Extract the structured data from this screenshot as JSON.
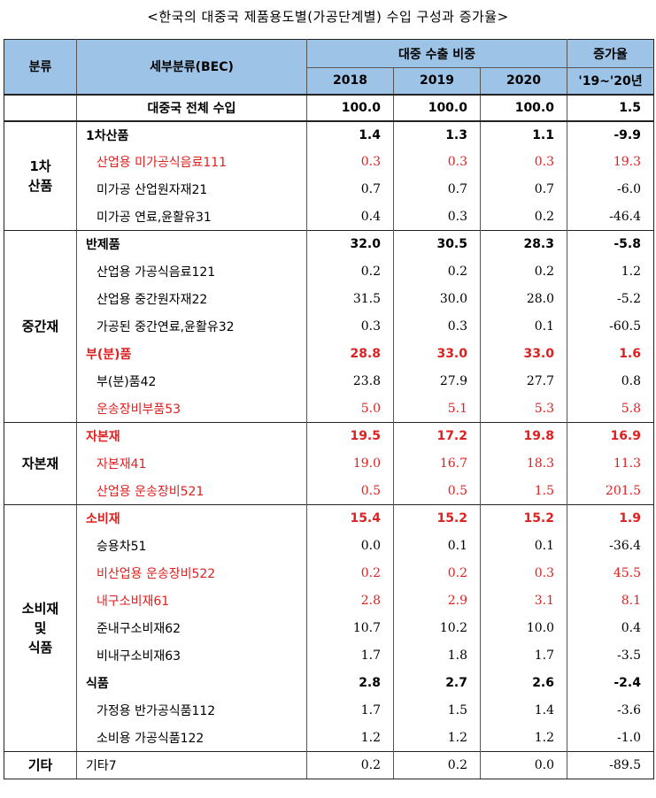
{
  "title": "<한국의 대중국 제품용도별(가공단계별) 수입 구성과 증가율>",
  "header": {
    "col_category": "분류",
    "col_detail": "세부분류(BEC)",
    "col_share": "대중 수출 비중",
    "col_growth": "증가율",
    "years": [
      "2018",
      "2019",
      "2020"
    ],
    "growth_period": "'19~'20년"
  },
  "total": {
    "label": "대중국 전체 수입",
    "v2018": "100.0",
    "v2019": "100.0",
    "v2020": "100.0",
    "growth": "1.5"
  },
  "groups": [
    {
      "category": "1차\n산품",
      "rows": [
        {
          "label": "1차산품",
          "v2018": "1.4",
          "v2019": "1.3",
          "v2020": "1.1",
          "growth": "-9.9",
          "style": "bold"
        },
        {
          "label": "산업용 미가공식음료111",
          "v2018": "0.3",
          "v2019": "0.3",
          "v2020": "0.3",
          "growth": "19.3",
          "style": "red"
        },
        {
          "label": "미가공 산업원자재21",
          "v2018": "0.7",
          "v2019": "0.7",
          "v2020": "0.7",
          "growth": "-6.0",
          "style": ""
        },
        {
          "label": "미가공 연료,윤활유31",
          "v2018": "0.4",
          "v2019": "0.3",
          "v2020": "0.2",
          "growth": "-46.4",
          "style": ""
        }
      ]
    },
    {
      "category": "중간재",
      "rows": [
        {
          "label": "반제품",
          "v2018": "32.0",
          "v2019": "30.5",
          "v2020": "28.3",
          "growth": "-5.8",
          "style": "bold"
        },
        {
          "label": "산업용 가공식음료121",
          "v2018": "0.2",
          "v2019": "0.2",
          "v2020": "0.2",
          "growth": "1.2",
          "style": ""
        },
        {
          "label": "산업용 중간원자재22",
          "v2018": "31.5",
          "v2019": "30.0",
          "v2020": "28.0",
          "growth": "-5.2",
          "style": ""
        },
        {
          "label": "가공된 중간연료,윤활유32",
          "v2018": "0.3",
          "v2019": "0.3",
          "v2020": "0.1",
          "growth": "-60.5",
          "style": ""
        },
        {
          "label": "부(분)품",
          "v2018": "28.8",
          "v2019": "33.0",
          "v2020": "33.0",
          "growth": "1.6",
          "style": "bold red"
        },
        {
          "label": "부(분)품42",
          "v2018": "23.8",
          "v2019": "27.9",
          "v2020": "27.7",
          "growth": "0.8",
          "style": ""
        },
        {
          "label": "운송장비부품53",
          "v2018": "5.0",
          "v2019": "5.1",
          "v2020": "5.3",
          "growth": "5.8",
          "style": "red"
        }
      ]
    },
    {
      "category": "자본재",
      "rows": [
        {
          "label": "자본재",
          "v2018": "19.5",
          "v2019": "17.2",
          "v2020": "19.8",
          "growth": "16.9",
          "style": "bold red"
        },
        {
          "label": "자본재41",
          "v2018": "19.0",
          "v2019": "16.7",
          "v2020": "18.3",
          "growth": "11.3",
          "style": "red"
        },
        {
          "label": "산업용 운송장비521",
          "v2018": "0.5",
          "v2019": "0.5",
          "v2020": "1.5",
          "growth": "201.5",
          "style": "red"
        }
      ]
    },
    {
      "category": "소비재\n및\n식품",
      "rows": [
        {
          "label": "소비재",
          "v2018": "15.4",
          "v2019": "15.2",
          "v2020": "15.2",
          "growth": "1.9",
          "style": "bold red"
        },
        {
          "label": "승용차51",
          "v2018": "0.0",
          "v2019": "0.1",
          "v2020": "0.1",
          "growth": "-36.4",
          "style": ""
        },
        {
          "label": "비산업용 운송장비522",
          "v2018": "0.2",
          "v2019": "0.2",
          "v2020": "0.3",
          "growth": "45.5",
          "style": "red"
        },
        {
          "label": "내구소비재61",
          "v2018": "2.8",
          "v2019": "2.9",
          "v2020": "3.1",
          "growth": "8.1",
          "style": "red"
        },
        {
          "label": "준내구소비재62",
          "v2018": "10.7",
          "v2019": "10.2",
          "v2020": "10.0",
          "growth": "0.4",
          "style": ""
        },
        {
          "label": "비내구소비재63",
          "v2018": "1.7",
          "v2019": "1.8",
          "v2020": "1.7",
          "growth": "-3.5",
          "style": ""
        },
        {
          "label": "식품",
          "v2018": "2.8",
          "v2019": "2.7",
          "v2020": "2.6",
          "growth": "-2.4",
          "style": "bold"
        },
        {
          "label": "가정용 반가공식품112",
          "v2018": "1.7",
          "v2019": "1.5",
          "v2020": "1.4",
          "growth": "-3.6",
          "style": ""
        },
        {
          "label": "소비용 가공식품122",
          "v2018": "1.2",
          "v2019": "1.2",
          "v2020": "1.2",
          "growth": "-1.0",
          "style": ""
        }
      ]
    },
    {
      "category": "기타",
      "rows": [
        {
          "label": "기타7",
          "v2018": "0.2",
          "v2019": "0.2",
          "v2020": "0.0",
          "growth": "-89.5",
          "style": "plain"
        }
      ]
    }
  ]
}
